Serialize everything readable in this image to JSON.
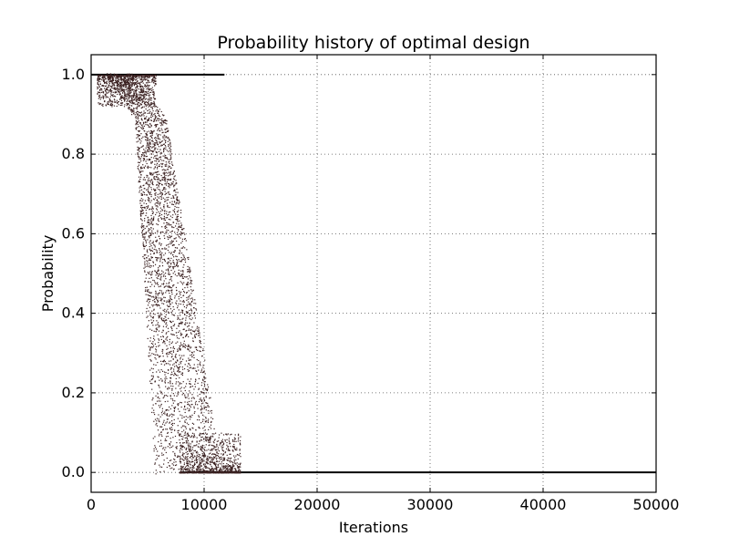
{
  "chart_data": {
    "type": "scatter",
    "title": "Probability history of optimal design",
    "xlabel": "Iterations",
    "ylabel": "Probability",
    "xlim": [
      0,
      50000
    ],
    "ylim": [
      -0.05,
      1.05
    ],
    "xticks": [
      0,
      10000,
      20000,
      30000,
      40000,
      50000
    ],
    "xtick_labels": [
      "0",
      "10000",
      "20000",
      "30000",
      "40000",
      "50000"
    ],
    "yticks": [
      0.0,
      0.2,
      0.4,
      0.6,
      0.8,
      1.0
    ],
    "ytick_labels": [
      "0.0",
      "0.2",
      "0.4",
      "0.6",
      "0.8",
      "1.0"
    ],
    "grid": true,
    "marker_color": "#3a2020",
    "line_color": "#000000",
    "lines": [
      {
        "x": [
          0,
          11800
        ],
        "y": [
          1.0,
          1.0
        ]
      },
      {
        "x": [
          7900,
          50000
        ],
        "y": [
          0.0,
          0.0
        ]
      }
    ],
    "scatter_sample": [
      {
        "x": 1000,
        "y": 0.995
      },
      {
        "x": 2000,
        "y": 0.99
      },
      {
        "x": 3000,
        "y": 0.97
      },
      {
        "x": 4000,
        "y": 0.95
      },
      {
        "x": 4500,
        "y": 0.93
      },
      {
        "x": 5000,
        "y": 0.9
      },
      {
        "x": 5500,
        "y": 0.85
      },
      {
        "x": 6000,
        "y": 0.78
      },
      {
        "x": 6500,
        "y": 0.68
      },
      {
        "x": 7000,
        "y": 0.55
      },
      {
        "x": 7500,
        "y": 0.42
      },
      {
        "x": 8000,
        "y": 0.3
      },
      {
        "x": 8500,
        "y": 0.2
      },
      {
        "x": 9000,
        "y": 0.12
      },
      {
        "x": 10000,
        "y": 0.06
      },
      {
        "x": 11000,
        "y": 0.03
      },
      {
        "x": 12000,
        "y": 0.01
      },
      {
        "x": 13000,
        "y": 0.0
      }
    ]
  }
}
